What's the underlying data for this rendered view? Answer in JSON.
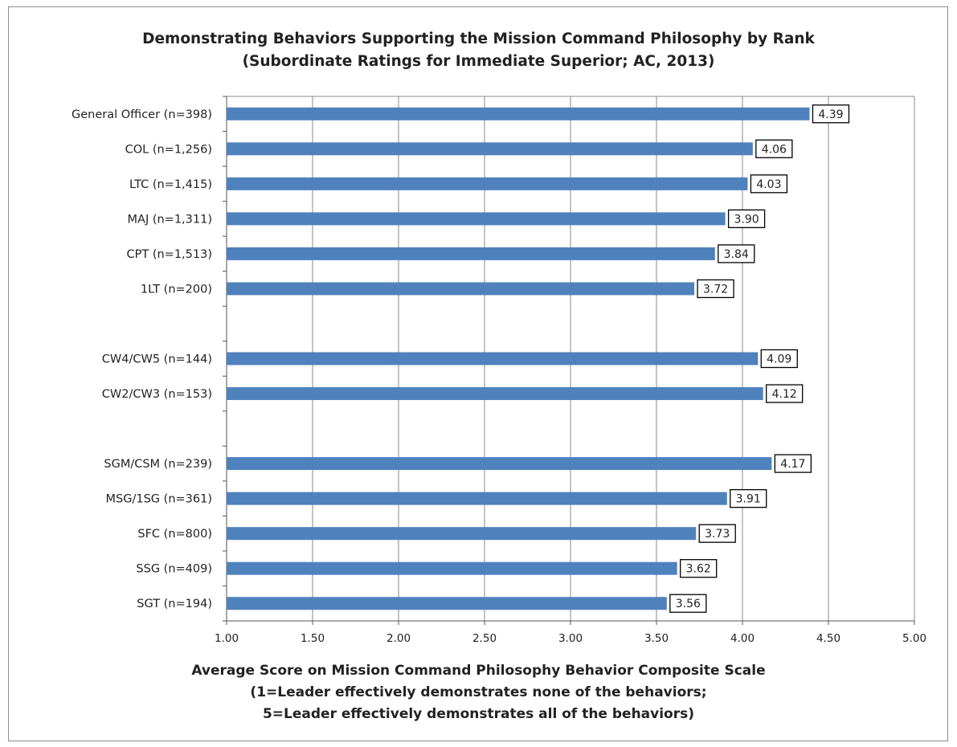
{
  "chart_data": {
    "type": "bar",
    "orientation": "horizontal",
    "title": "Demonstrating Behaviors Supporting the Mission Command Philosophy by Rank",
    "subtitle": "(Subordinate Ratings for Immediate Superior; AC, 2013)",
    "xlabel_lines": [
      "Average Score on Mission Command Philosophy Behavior Composite Scale",
      "(1=Leader effectively demonstrates none of the behaviors;",
      "5=Leader effectively demonstrates all of the behaviors)"
    ],
    "ylabel": "",
    "xlim": [
      1.0,
      5.0
    ],
    "x_ticks": [
      "1.00",
      "1.50",
      "2.00",
      "2.50",
      "3.00",
      "3.50",
      "4.00",
      "4.50",
      "5.00"
    ],
    "grid": "vertical",
    "bar_color": "#4f81bd",
    "categories": [
      "General Officer (n=398)",
      "COL (n=1,256)",
      "LTC (n=1,415)",
      "MAJ (n=1,311)",
      "CPT (n=1,513)",
      "1LT (n=200)",
      "",
      "CW4/CW5 (n=144)",
      "CW2/CW3 (n=153)",
      "",
      "SGM/CSM (n=239)",
      "MSG/1SG (n=361)",
      "SFC (n=800)",
      "SSG (n=409)",
      "SGT (n=194)"
    ],
    "values": [
      4.39,
      4.06,
      4.03,
      3.9,
      3.84,
      3.72,
      null,
      4.09,
      4.12,
      null,
      4.17,
      3.91,
      3.73,
      3.62,
      3.56
    ],
    "data_labels": [
      "4.39",
      "4.06",
      "4.03",
      "3.90",
      "3.84",
      "3.72",
      "",
      "4.09",
      "4.12",
      "",
      "4.17",
      "3.91",
      "3.73",
      "3.62",
      "3.56"
    ]
  }
}
